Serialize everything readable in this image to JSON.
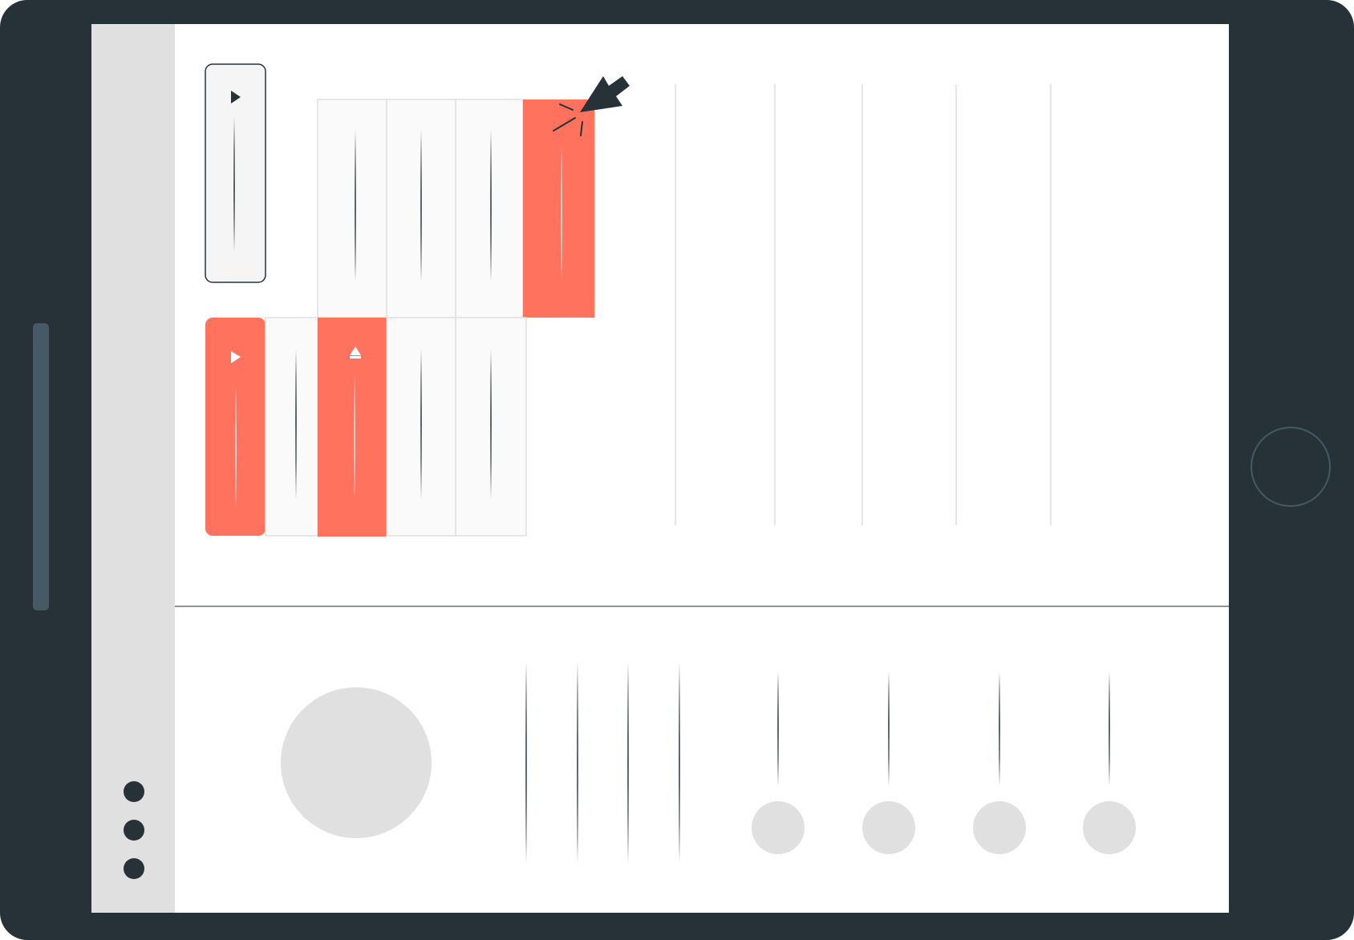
{
  "colors": {
    "bezel": "#263238",
    "bezel_button": "#455a64",
    "screen": "#ffffff",
    "sidebar": "#e0e0e0",
    "tile": "#fafafa",
    "tile_border": "#e0e0e0",
    "header_tile": "#f5f5f5",
    "accent": "#ff725e",
    "placeholder_circle": "#e0e0e0",
    "dark_line": "#263238",
    "faint_line": "#e6e6e6"
  },
  "icons": {
    "play": "play-icon",
    "eject": "eject-icon",
    "cursor": "cursor-arrow-icon",
    "menu": "vertical-dots-icon",
    "home": "home-button-icon"
  },
  "state": {
    "selected_top_row_tile": 4,
    "selected_bottom_row_tile": 2,
    "bottom_row_header_active": true
  }
}
